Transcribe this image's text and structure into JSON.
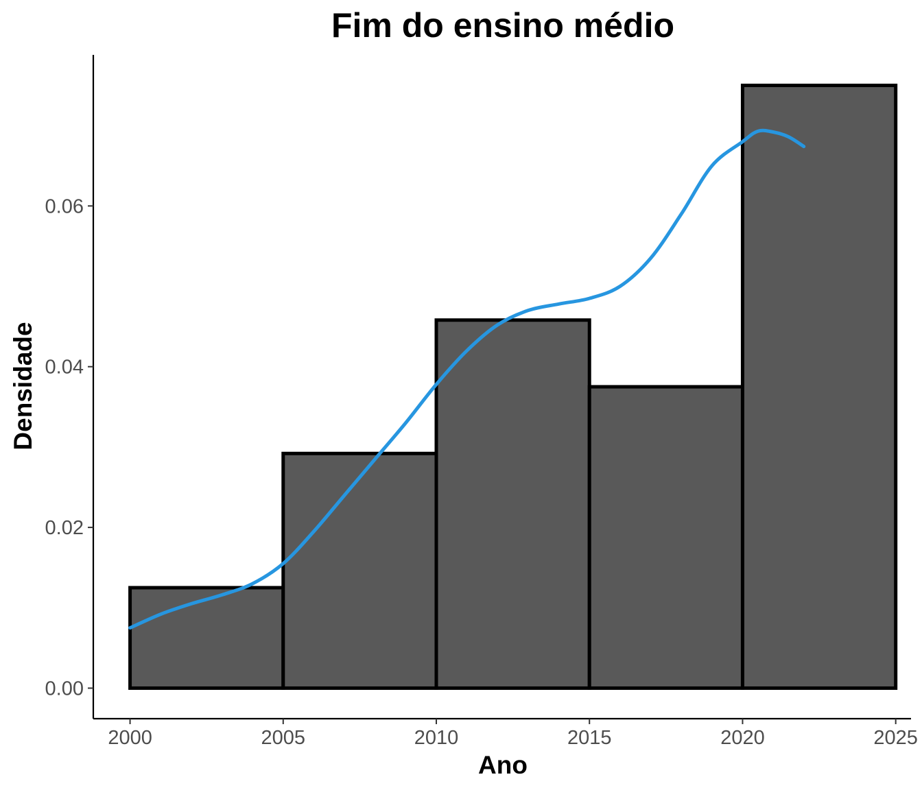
{
  "chart_data": {
    "type": "bar",
    "title": "Fim do ensino médio",
    "xlabel": "Ano",
    "ylabel": "Densidade",
    "xlim": [
      1998.8,
      2025.5
    ],
    "ylim": [
      -0.0038,
      0.0788
    ],
    "x_ticks": [
      2000,
      2005,
      2010,
      2015,
      2020,
      2025
    ],
    "y_ticks": [
      0.0,
      0.02,
      0.04,
      0.06
    ],
    "x_tick_labels": [
      "2000",
      "2005",
      "2010",
      "2015",
      "2020",
      "2025"
    ],
    "y_tick_labels": [
      "0.00",
      "0.02",
      "0.04",
      "0.06"
    ],
    "grid": false,
    "legend": "none",
    "bins": [
      {
        "x0": 2000,
        "x1": 2005,
        "density": 0.0125
      },
      {
        "x0": 2005,
        "x1": 2010,
        "density": 0.0292
      },
      {
        "x0": 2010,
        "x1": 2015,
        "density": 0.0458
      },
      {
        "x0": 2015,
        "x1": 2020,
        "density": 0.0375
      },
      {
        "x0": 2020,
        "x1": 2025,
        "density": 0.075
      }
    ],
    "density_curve": {
      "x": [
        2000,
        2001,
        2002,
        2003,
        2004,
        2005,
        2006,
        2007,
        2008,
        2009,
        2010,
        2011,
        2012,
        2013,
        2014,
        2015,
        2016,
        2017,
        2018,
        2019,
        2020,
        2020.5,
        2021,
        2021.5,
        2022
      ],
      "y": [
        0.0075,
        0.0092,
        0.0105,
        0.0116,
        0.013,
        0.0155,
        0.0195,
        0.024,
        0.0285,
        0.033,
        0.0378,
        0.042,
        0.0452,
        0.047,
        0.0478,
        0.0485,
        0.05,
        0.0535,
        0.059,
        0.065,
        0.068,
        0.0693,
        0.0692,
        0.0686,
        0.0674
      ]
    },
    "colors": {
      "bar_fill": "#595959",
      "bar_outline": "#000000",
      "density_line": "#2796e0"
    }
  }
}
